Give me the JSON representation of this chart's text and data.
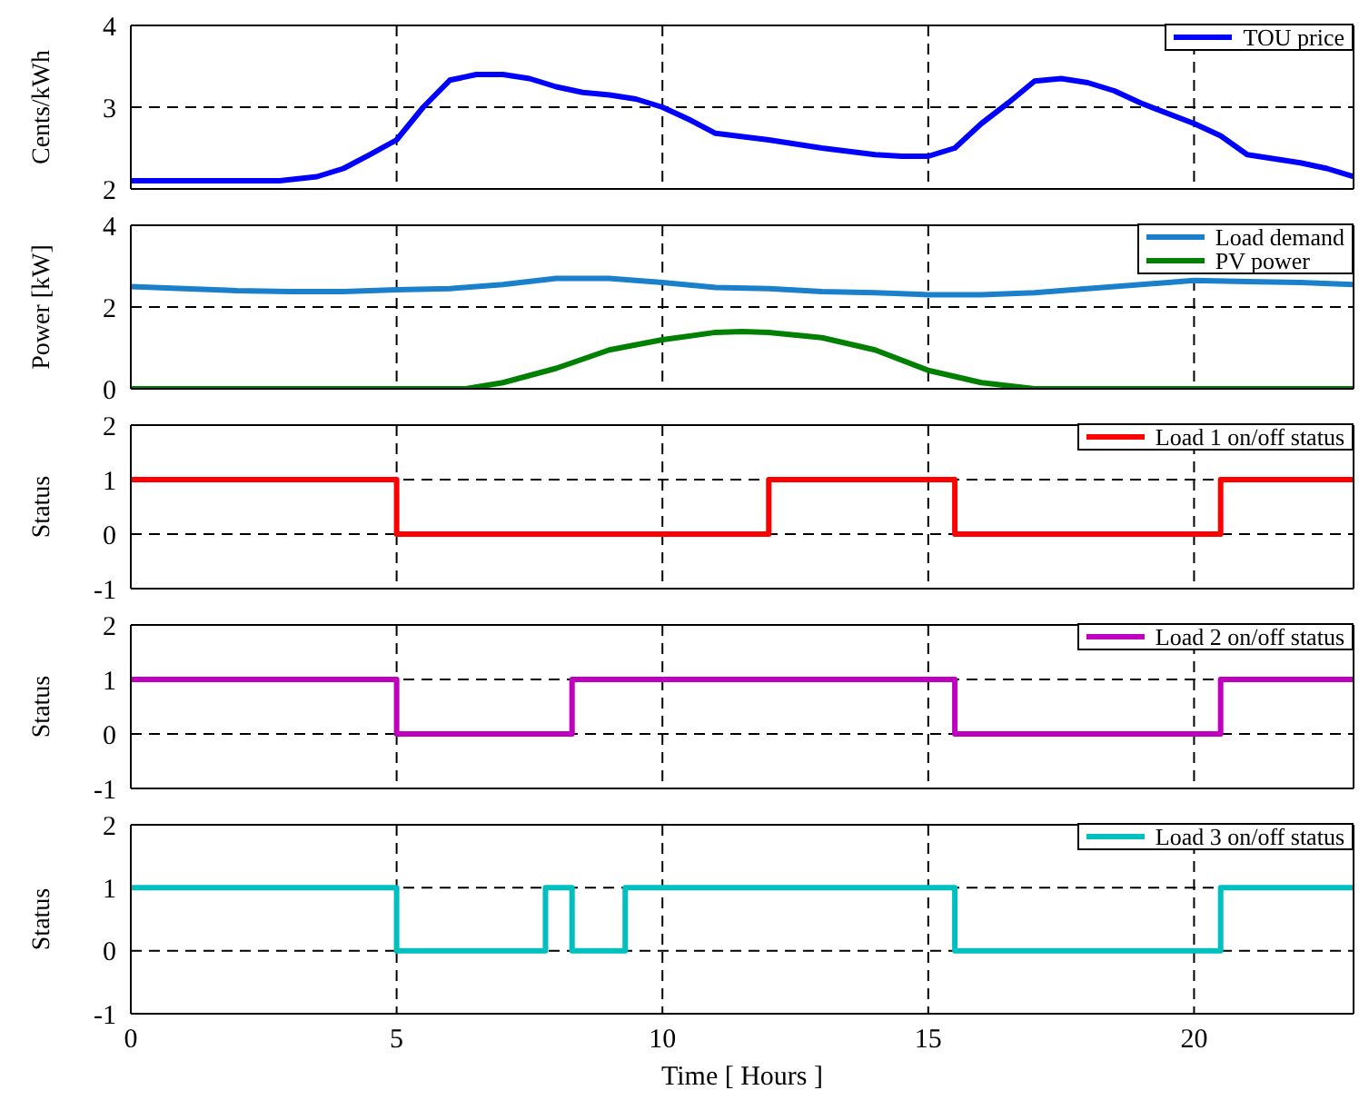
{
  "chart_data": [
    {
      "type": "line",
      "ylabel": "Cents/kWh",
      "xlim": [
        0,
        23
      ],
      "xticks": [
        0,
        5,
        10,
        15,
        20
      ],
      "ylim": [
        2,
        4
      ],
      "yticks": [
        2,
        3,
        4
      ],
      "grid": true,
      "legend": "top right",
      "tick_labels": "y",
      "series": [
        {
          "name": "TOU price",
          "color": "#0000ff",
          "x": [
            0,
            1,
            2,
            2.8,
            3.5,
            4,
            4.5,
            5,
            5.5,
            6,
            6.5,
            7,
            7.5,
            8,
            8.5,
            9,
            9.5,
            10,
            10.5,
            11,
            12,
            13,
            14,
            14.5,
            15,
            15.5,
            16,
            16.5,
            17,
            17.5,
            18,
            18.5,
            19,
            20,
            20.5,
            21,
            22,
            22.5,
            23
          ],
          "values": [
            2.1,
            2.1,
            2.1,
            2.1,
            2.15,
            2.25,
            2.42,
            2.6,
            3.0,
            3.33,
            3.4,
            3.4,
            3.35,
            3.25,
            3.18,
            3.15,
            3.1,
            3.0,
            2.85,
            2.68,
            2.6,
            2.5,
            2.42,
            2.4,
            2.4,
            2.5,
            2.8,
            3.05,
            3.32,
            3.35,
            3.3,
            3.2,
            3.05,
            2.8,
            2.65,
            2.42,
            2.32,
            2.25,
            2.15
          ]
        }
      ]
    },
    {
      "type": "line",
      "ylabel": "Power [kW]",
      "xlim": [
        0,
        23
      ],
      "xticks": [
        0,
        5,
        10,
        15,
        20
      ],
      "ylim": [
        0,
        4
      ],
      "yticks": [
        0,
        2,
        4
      ],
      "grid": true,
      "legend": "top right",
      "tick_labels": "y",
      "series": [
        {
          "name": "Load demand",
          "color": "#1a80cc",
          "x": [
            0,
            1,
            2,
            3,
            4,
            5,
            6,
            7,
            8,
            9,
            10,
            11,
            12,
            13,
            14,
            15,
            16,
            17,
            18,
            19,
            20,
            21,
            22,
            23
          ],
          "values": [
            2.5,
            2.45,
            2.4,
            2.38,
            2.38,
            2.42,
            2.45,
            2.55,
            2.7,
            2.7,
            2.6,
            2.48,
            2.45,
            2.38,
            2.35,
            2.3,
            2.3,
            2.35,
            2.45,
            2.55,
            2.65,
            2.62,
            2.6,
            2.55
          ]
        },
        {
          "name": "PV power",
          "color": "#008000",
          "x": [
            0,
            6.3,
            7,
            8,
            9,
            10,
            11,
            11.5,
            12,
            13,
            14,
            15,
            16,
            17,
            23
          ],
          "values": [
            0,
            0,
            0.15,
            0.5,
            0.95,
            1.2,
            1.38,
            1.4,
            1.38,
            1.25,
            0.95,
            0.45,
            0.15,
            0,
            0
          ]
        }
      ]
    },
    {
      "type": "step",
      "ylabel": "Status",
      "xlim": [
        0,
        23
      ],
      "xticks": [
        0,
        5,
        10,
        15,
        20
      ],
      "ylim": [
        -1,
        2
      ],
      "yticks": [
        -1,
        0,
        1,
        2
      ],
      "grid": true,
      "legend": "top right",
      "tick_labels": "y",
      "series": [
        {
          "name": "Load 1 on/off status",
          "color": "#ff0000",
          "x": [
            0,
            5,
            12,
            15.5,
            20.5,
            23
          ],
          "values": [
            1,
            0,
            1,
            0,
            1,
            1
          ]
        }
      ]
    },
    {
      "type": "step",
      "ylabel": "Status",
      "xlim": [
        0,
        23
      ],
      "xticks": [
        0,
        5,
        10,
        15,
        20
      ],
      "ylim": [
        -1,
        2
      ],
      "yticks": [
        -1,
        0,
        1,
        2
      ],
      "grid": true,
      "legend": "top right",
      "tick_labels": "y",
      "series": [
        {
          "name": "Load 2 on/off status",
          "color": "#bf00bf",
          "x": [
            0,
            5,
            8.3,
            15.5,
            20.5,
            23
          ],
          "values": [
            1,
            0,
            1,
            0,
            1,
            1
          ]
        }
      ]
    },
    {
      "type": "step",
      "ylabel": "Status",
      "xlabel": "Time [ Hours ]",
      "xlim": [
        0,
        23
      ],
      "xticks": [
        0,
        5,
        10,
        15,
        20
      ],
      "ylim": [
        -1,
        2
      ],
      "yticks": [
        -1,
        0,
        1,
        2
      ],
      "grid": true,
      "legend": "top right",
      "series": [
        {
          "name": "Load 3 on/off status",
          "color": "#00bfbf",
          "x": [
            0,
            5,
            7.8,
            8.3,
            9.3,
            15.5,
            20.5,
            23
          ],
          "values": [
            1,
            0,
            1,
            0,
            1,
            0,
            1,
            1
          ]
        }
      ]
    }
  ]
}
